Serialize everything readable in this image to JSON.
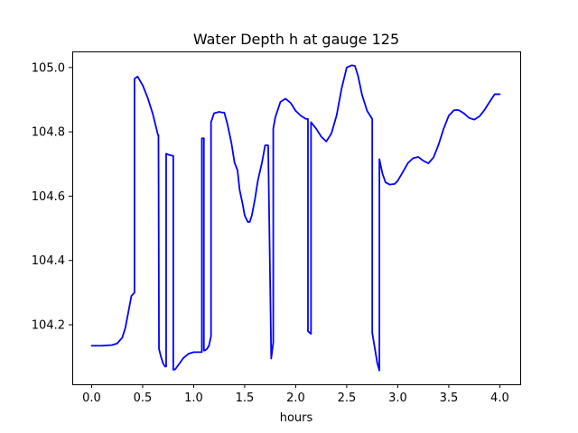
{
  "chart_data": {
    "type": "line",
    "title": "Water Depth h at gauge 125",
    "xlabel": "hours",
    "ylabel": "",
    "xlim": [
      -0.19,
      4.2
    ],
    "ylim": [
      104.015,
      105.05
    ],
    "x_ticks": [
      0.0,
      0.5,
      1.0,
      1.5,
      2.0,
      2.5,
      3.0,
      3.5,
      4.0
    ],
    "x_tick_labels": [
      "0.0",
      "0.5",
      "1.0",
      "1.5",
      "2.0",
      "2.5",
      "3.0",
      "3.5",
      "4.0"
    ],
    "y_ticks": [
      104.2,
      104.4,
      104.6,
      104.8,
      105.0
    ],
    "y_tick_labels": [
      "104.2",
      "104.4",
      "104.6",
      "104.8",
      "105.0"
    ],
    "grid": false,
    "legend": "none",
    "colors": {
      "line": "#0000ff",
      "axes": "#000000",
      "background": "#ffffff"
    },
    "series": [
      {
        "x": [
          0.0,
          0.1,
          0.2,
          0.25,
          0.3,
          0.33,
          0.36,
          0.39,
          0.42,
          0.42,
          0.45,
          0.5,
          0.55,
          0.6,
          0.65,
          0.655,
          0.66,
          0.68,
          0.7,
          0.72,
          0.73,
          0.73,
          0.76,
          0.8,
          0.8,
          0.8,
          0.82,
          0.85,
          0.9,
          0.95,
          1.0,
          1.05,
          1.08,
          1.08,
          1.1,
          1.1,
          1.11,
          1.13,
          1.15,
          1.17,
          1.17,
          1.2,
          1.25,
          1.28,
          1.3,
          1.33,
          1.37,
          1.4,
          1.43,
          1.45,
          1.48,
          1.5,
          1.53,
          1.55,
          1.57,
          1.6,
          1.63,
          1.67,
          1.7,
          1.73,
          1.76,
          1.76,
          1.78,
          1.78,
          1.8,
          1.85,
          1.9,
          1.95,
          2.0,
          2.05,
          2.1,
          2.12,
          2.12,
          2.15,
          2.15,
          2.2,
          2.25,
          2.3,
          2.35,
          2.4,
          2.45,
          2.5,
          2.55,
          2.58,
          2.61,
          2.65,
          2.7,
          2.75,
          2.75,
          2.8,
          2.82,
          2.82,
          2.85,
          2.88,
          2.92,
          2.97,
          3.0,
          3.05,
          3.1,
          3.15,
          3.2,
          3.25,
          3.3,
          3.35,
          3.4,
          3.45,
          3.5,
          3.55,
          3.58,
          3.6,
          3.65,
          3.7,
          3.75,
          3.8,
          3.85,
          3.9,
          3.95,
          4.0
        ],
        "y": [
          104.135,
          104.135,
          104.137,
          104.142,
          104.16,
          104.19,
          104.24,
          104.29,
          104.3,
          104.965,
          104.972,
          104.945,
          104.905,
          104.855,
          104.79,
          104.79,
          104.125,
          104.1,
          104.08,
          104.07,
          104.07,
          104.732,
          104.728,
          104.725,
          104.725,
          104.06,
          104.062,
          104.075,
          104.097,
          104.11,
          104.115,
          104.115,
          104.115,
          104.78,
          104.78,
          104.12,
          104.12,
          104.125,
          104.135,
          104.165,
          104.83,
          104.858,
          104.862,
          104.86,
          104.86,
          104.825,
          104.765,
          104.705,
          104.68,
          104.62,
          104.575,
          104.54,
          104.52,
          104.52,
          104.54,
          104.59,
          104.65,
          104.705,
          104.758,
          104.758,
          104.095,
          104.095,
          104.145,
          104.81,
          104.845,
          104.893,
          104.903,
          104.89,
          104.865,
          104.85,
          104.84,
          104.84,
          104.18,
          104.172,
          104.83,
          104.81,
          104.785,
          104.77,
          104.795,
          104.85,
          104.935,
          105.0,
          105.007,
          105.005,
          104.975,
          104.915,
          104.865,
          104.84,
          104.175,
          104.08,
          104.058,
          104.715,
          104.67,
          104.643,
          104.636,
          104.638,
          104.648,
          104.675,
          104.703,
          104.718,
          104.722,
          104.71,
          104.702,
          104.72,
          104.76,
          104.81,
          104.85,
          104.867,
          104.868,
          104.867,
          104.857,
          104.843,
          104.838,
          104.848,
          104.868,
          104.893,
          104.917,
          104.917
        ]
      }
    ]
  }
}
